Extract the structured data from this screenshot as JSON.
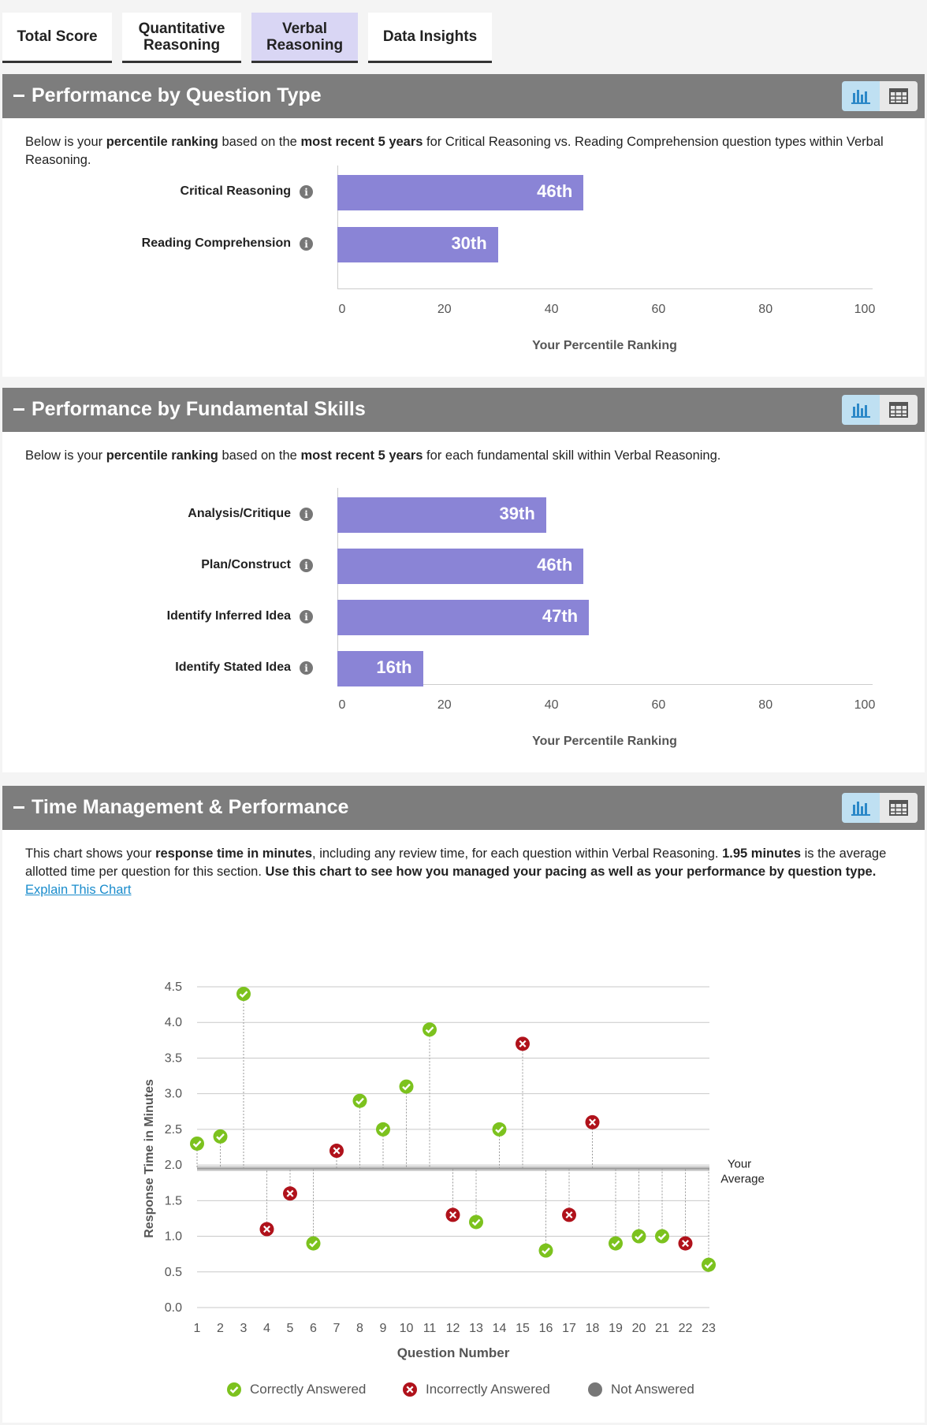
{
  "tabs": [
    {
      "label": "Total Score",
      "active": false
    },
    {
      "label": "Quantitative\nReasoning",
      "active": false
    },
    {
      "label": "Verbal\nReasoning",
      "active": true
    },
    {
      "label": "Data Insights",
      "active": false
    }
  ],
  "sections": {
    "question_type": {
      "title": "Performance by Question Type",
      "desc": {
        "p1": "Below is your ",
        "b1": "percentile ranking",
        "p2": " based on the ",
        "b2": "most recent 5 years",
        "p3": " for Critical Reasoning vs. Reading Comprehension question types within Verbal Reasoning."
      },
      "axis_title": "Your Percentile Ranking"
    },
    "fundamental": {
      "title": "Performance by Fundamental Skills",
      "desc": {
        "p1": "Below is your ",
        "b1": "percentile ranking",
        "p2": " based on the ",
        "b2": "most recent 5 years",
        "p3": " for each fundamental skill within Verbal Reasoning."
      },
      "axis_title": "Your Percentile Ranking"
    },
    "time": {
      "title": "Time Management & Performance",
      "desc": {
        "p1": "This chart shows your ",
        "b1": "response time in minutes",
        "p2": ", including any review time, for each question within Verbal Reasoning. ",
        "b2": "1.95 minutes",
        "p3": " is the average allotted time per question for this section. ",
        "b3": "Use this chart to see how you managed your pacing as well as your performance by question type.",
        "p4": " ",
        "link": "Explain This Chart"
      }
    }
  },
  "colors": {
    "bar": "#8a84d6",
    "correct": "#7cc21e",
    "incorrect": "#b0121b",
    "not_answered": "#777777",
    "header": "#7d7d7d"
  },
  "chart_data": [
    {
      "type": "bar",
      "orientation": "horizontal",
      "categories": [
        "Critical Reasoning",
        "Reading Comprehension"
      ],
      "values": [
        46,
        30
      ],
      "value_labels": [
        "46th",
        "30th"
      ],
      "xlabel": "Your Percentile Ranking",
      "xlim": [
        0,
        100
      ],
      "xticks": [
        "0",
        "20",
        "40",
        "60",
        "80",
        "100"
      ]
    },
    {
      "type": "bar",
      "orientation": "horizontal",
      "categories": [
        "Analysis/Critique",
        "Plan/Construct",
        "Identify Inferred Idea",
        "Identify Stated Idea"
      ],
      "values": [
        39,
        46,
        47,
        16
      ],
      "value_labels": [
        "39th",
        "46th",
        "47th",
        "16th"
      ],
      "xlabel": "Your Percentile Ranking",
      "xlim": [
        0,
        100
      ],
      "xticks": [
        "0",
        "20",
        "40",
        "60",
        "80",
        "100"
      ]
    },
    {
      "type": "scatter",
      "xlabel": "Question Number",
      "ylabel": "Response Time in Minutes",
      "ylim": [
        0,
        4.5
      ],
      "yticks": [
        "0.0",
        "0.5",
        "1.0",
        "1.5",
        "2.0",
        "2.5",
        "3.0",
        "3.5",
        "4.0",
        "4.5"
      ],
      "average": 1.95,
      "average_label": [
        "Your",
        "Average"
      ],
      "x": [
        1,
        2,
        3,
        4,
        5,
        6,
        7,
        8,
        9,
        10,
        11,
        12,
        13,
        14,
        15,
        16,
        17,
        18,
        19,
        20,
        21,
        22,
        23
      ],
      "values": [
        2.3,
        2.4,
        4.4,
        1.1,
        1.6,
        0.9,
        2.2,
        2.9,
        2.5,
        3.1,
        3.9,
        1.3,
        1.2,
        2.5,
        3.7,
        0.8,
        1.3,
        2.6,
        0.9,
        1.0,
        1.0,
        0.9,
        0.6
      ],
      "status": [
        "correct",
        "correct",
        "correct",
        "incorrect",
        "incorrect",
        "correct",
        "incorrect",
        "correct",
        "correct",
        "correct",
        "correct",
        "incorrect",
        "correct",
        "correct",
        "incorrect",
        "correct",
        "incorrect",
        "incorrect",
        "correct",
        "correct",
        "correct",
        "incorrect",
        "correct"
      ],
      "legend": [
        "Correctly Answered",
        "Incorrectly Answered",
        "Not Answered"
      ]
    }
  ]
}
